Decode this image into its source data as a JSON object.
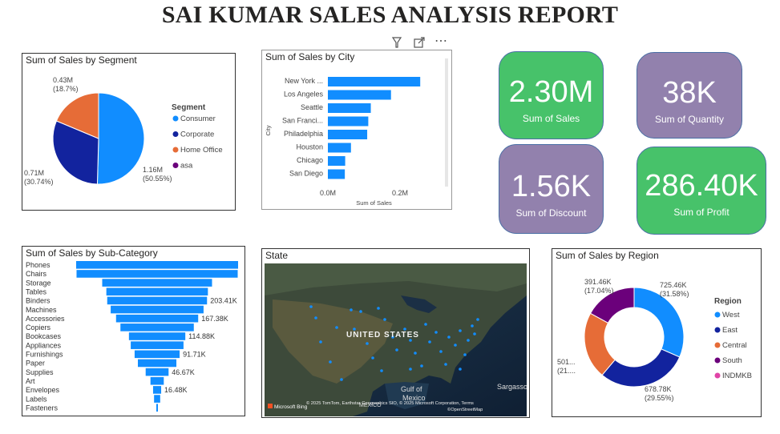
{
  "report_title": "SAI KUMAR SALES ANALYSIS REPORT",
  "toolbar": {
    "filter_icon": "filter-icon",
    "focus_icon": "focus-mode-icon",
    "more_icon": "more-options-icon",
    "more_glyph": "⋯"
  },
  "cards": [
    {
      "value": "2.30M",
      "label": "Sum of Sales",
      "color": "#47c26a"
    },
    {
      "value": "38K",
      "label": "Sum of Quantity",
      "color": "#9281ad"
    },
    {
      "value": "1.56K",
      "label": "Sum of Discount",
      "color": "#9281ad"
    },
    {
      "value": "286.40K",
      "label": "Sum of Profit",
      "color": "#47c26a"
    }
  ],
  "chart_data": [
    {
      "type": "pie",
      "title": "Sum of Sales by Segment",
      "legend_title": "Segment",
      "legend_position": "right",
      "slices": [
        {
          "name": "Consumer",
          "value": 1.16,
          "label": "1.16M",
          "percent": "(50.55%)",
          "color": "#118dff"
        },
        {
          "name": "Corporate",
          "value": 0.71,
          "label": "0.71M",
          "percent": "(30.74%)",
          "color": "#12239e"
        },
        {
          "name": "Home Office",
          "value": 0.43,
          "label": "0.43M",
          "percent": "(18.7%)",
          "color": "#e66c37"
        },
        {
          "name": "asa",
          "value": 0,
          "label": "",
          "percent": "",
          "color": "#6b007b"
        }
      ]
    },
    {
      "type": "bar",
      "orientation": "horizontal",
      "title": "Sum of Sales by City",
      "ylabel": "City",
      "xlabel": "Sum of Sales",
      "xlim": [
        0,
        0.3
      ],
      "xticks": [
        "0.0M",
        "0.2M"
      ],
      "categories": [
        "New York ...",
        "Los Angeles",
        "Seattle",
        "San Franci...",
        "Philadelphia",
        "Houston",
        "Chicago",
        "San Diego"
      ],
      "values": [
        0.256,
        0.175,
        0.119,
        0.112,
        0.109,
        0.064,
        0.048,
        0.047
      ],
      "color": "#118dff"
    },
    {
      "type": "bar",
      "orientation": "funnel",
      "title": "Sum of Sales by Sub-Category",
      "categories": [
        "Phones",
        "Chairs",
        "Storage",
        "Tables",
        "Binders",
        "Machines",
        "Accessories",
        "Copiers",
        "Bookcases",
        "Appliances",
        "Furnishings",
        "Paper",
        "Supplies",
        "Art",
        "Envelopes",
        "Labels",
        "Fasteners"
      ],
      "values": [
        330.01,
        328.45,
        223.84,
        206.97,
        203.41,
        189.24,
        167.38,
        149.53,
        114.88,
        107.53,
        91.71,
        78.48,
        46.67,
        27.12,
        16.48,
        12.49,
        3.02
      ],
      "data_labels": [
        "",
        "",
        "",
        "",
        "203.41K",
        "",
        "167.38K",
        "",
        "114.88K",
        "",
        "91.71K",
        "",
        "46.67K",
        "",
        "16.48K",
        "",
        ""
      ],
      "color": "#118dff"
    },
    {
      "type": "pie",
      "subtype": "donut",
      "title": "Sum of Sales by Region",
      "legend_title": "Region",
      "legend_position": "right",
      "slices": [
        {
          "name": "West",
          "value": 725.46,
          "label": "725.46K",
          "percent": "(31.58%)",
          "color": "#118dff"
        },
        {
          "name": "East",
          "value": 678.78,
          "label": "678.78K",
          "percent": "(29.55%)",
          "color": "#12239e"
        },
        {
          "name": "Central",
          "value": 501.24,
          "label": "501...",
          "percent": "(21....",
          "color": "#e66c37"
        },
        {
          "name": "South",
          "value": 391.46,
          "label": "391.46K",
          "percent": "(17.04%)",
          "color": "#6b007b"
        },
        {
          "name": "INDMKB",
          "value": 0,
          "label": "",
          "percent": "",
          "color": "#e044a7"
        }
      ]
    }
  ],
  "map": {
    "title": "State",
    "country_label": "UNITED STATES",
    "gulf_label_1": "Gulf of",
    "gulf_label_2": "Mexico",
    "sea_label": "Sargasso",
    "mexico_label": "MEXICO",
    "attribution": "© 2025 TomTom, Earthstar Geographics SIO, © 2025 Microsoft Corporation, Terms",
    "attribution2": "©OpenStreetMap",
    "bing_logo": "Microsoft Bing",
    "point_color": "#118dff"
  }
}
